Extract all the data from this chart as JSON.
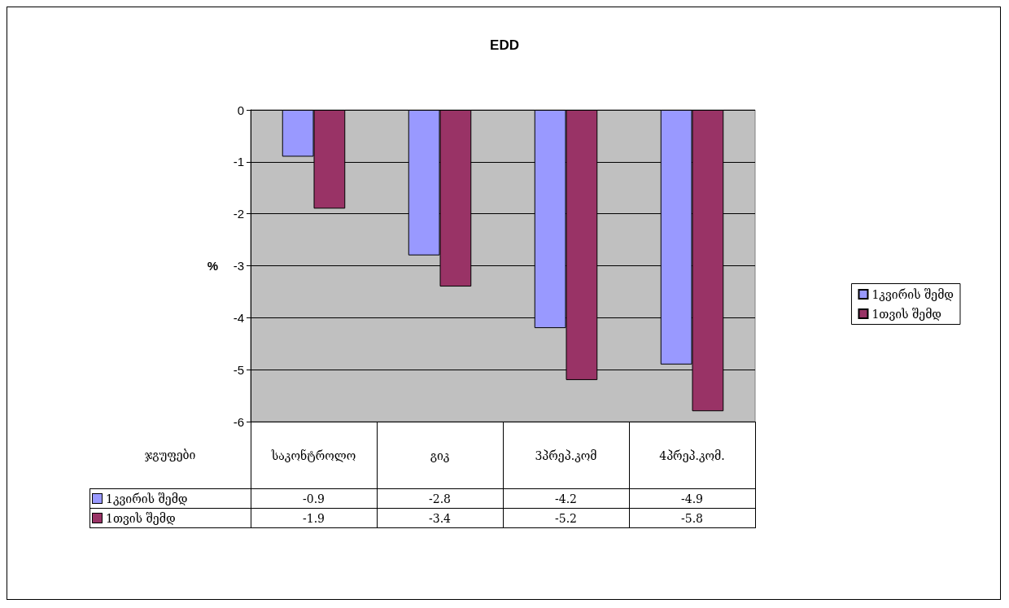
{
  "chart_data": {
    "type": "bar",
    "title": "EDD",
    "xlabel": "ჯგუფები",
    "ylabel": "%",
    "categories": [
      "საკონტროლო",
      "გიკ",
      "3პრეპ.კომ",
      "4პრეპ.კომ."
    ],
    "series": [
      {
        "name": "1კვირის შემდ",
        "color": "#9999ff",
        "values": [
          -0.9,
          -2.8,
          -4.2,
          -4.9
        ]
      },
      {
        "name": "1თვის შემდ",
        "color": "#993366",
        "values": [
          -1.9,
          -3.4,
          -5.2,
          -5.8
        ]
      }
    ],
    "ylim": [
      -6,
      0
    ],
    "yticks": [
      -6,
      -5,
      -4,
      -3,
      -2,
      -1,
      0
    ],
    "grid": "y",
    "legend": "right",
    "data_labels": true
  }
}
